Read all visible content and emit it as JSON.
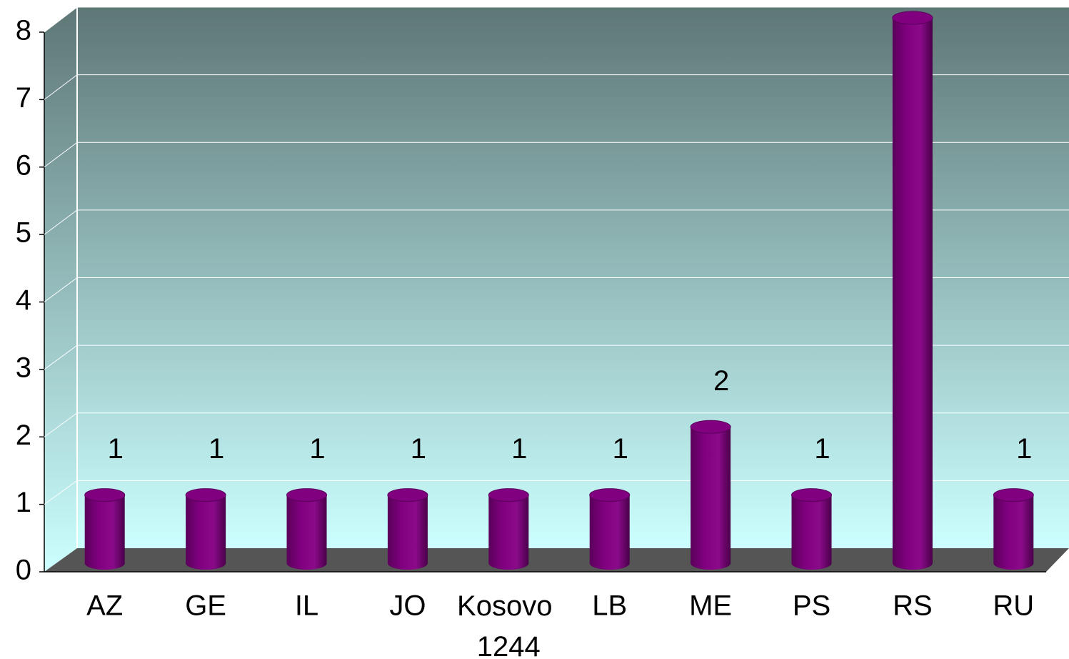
{
  "chart_data": {
    "type": "bar",
    "categories": [
      "AZ",
      "GE",
      "IL",
      "JO",
      "Kosovo 1244",
      "LB",
      "ME",
      "PS",
      "RS",
      "RU"
    ],
    "values": [
      1,
      1,
      1,
      1,
      1,
      1,
      2,
      1,
      8,
      1
    ],
    "color": "#800080",
    "ylim": [
      0,
      8
    ],
    "yticks": [
      0,
      1,
      2,
      3,
      4,
      5,
      6,
      7,
      8
    ],
    "grid": true
  }
}
